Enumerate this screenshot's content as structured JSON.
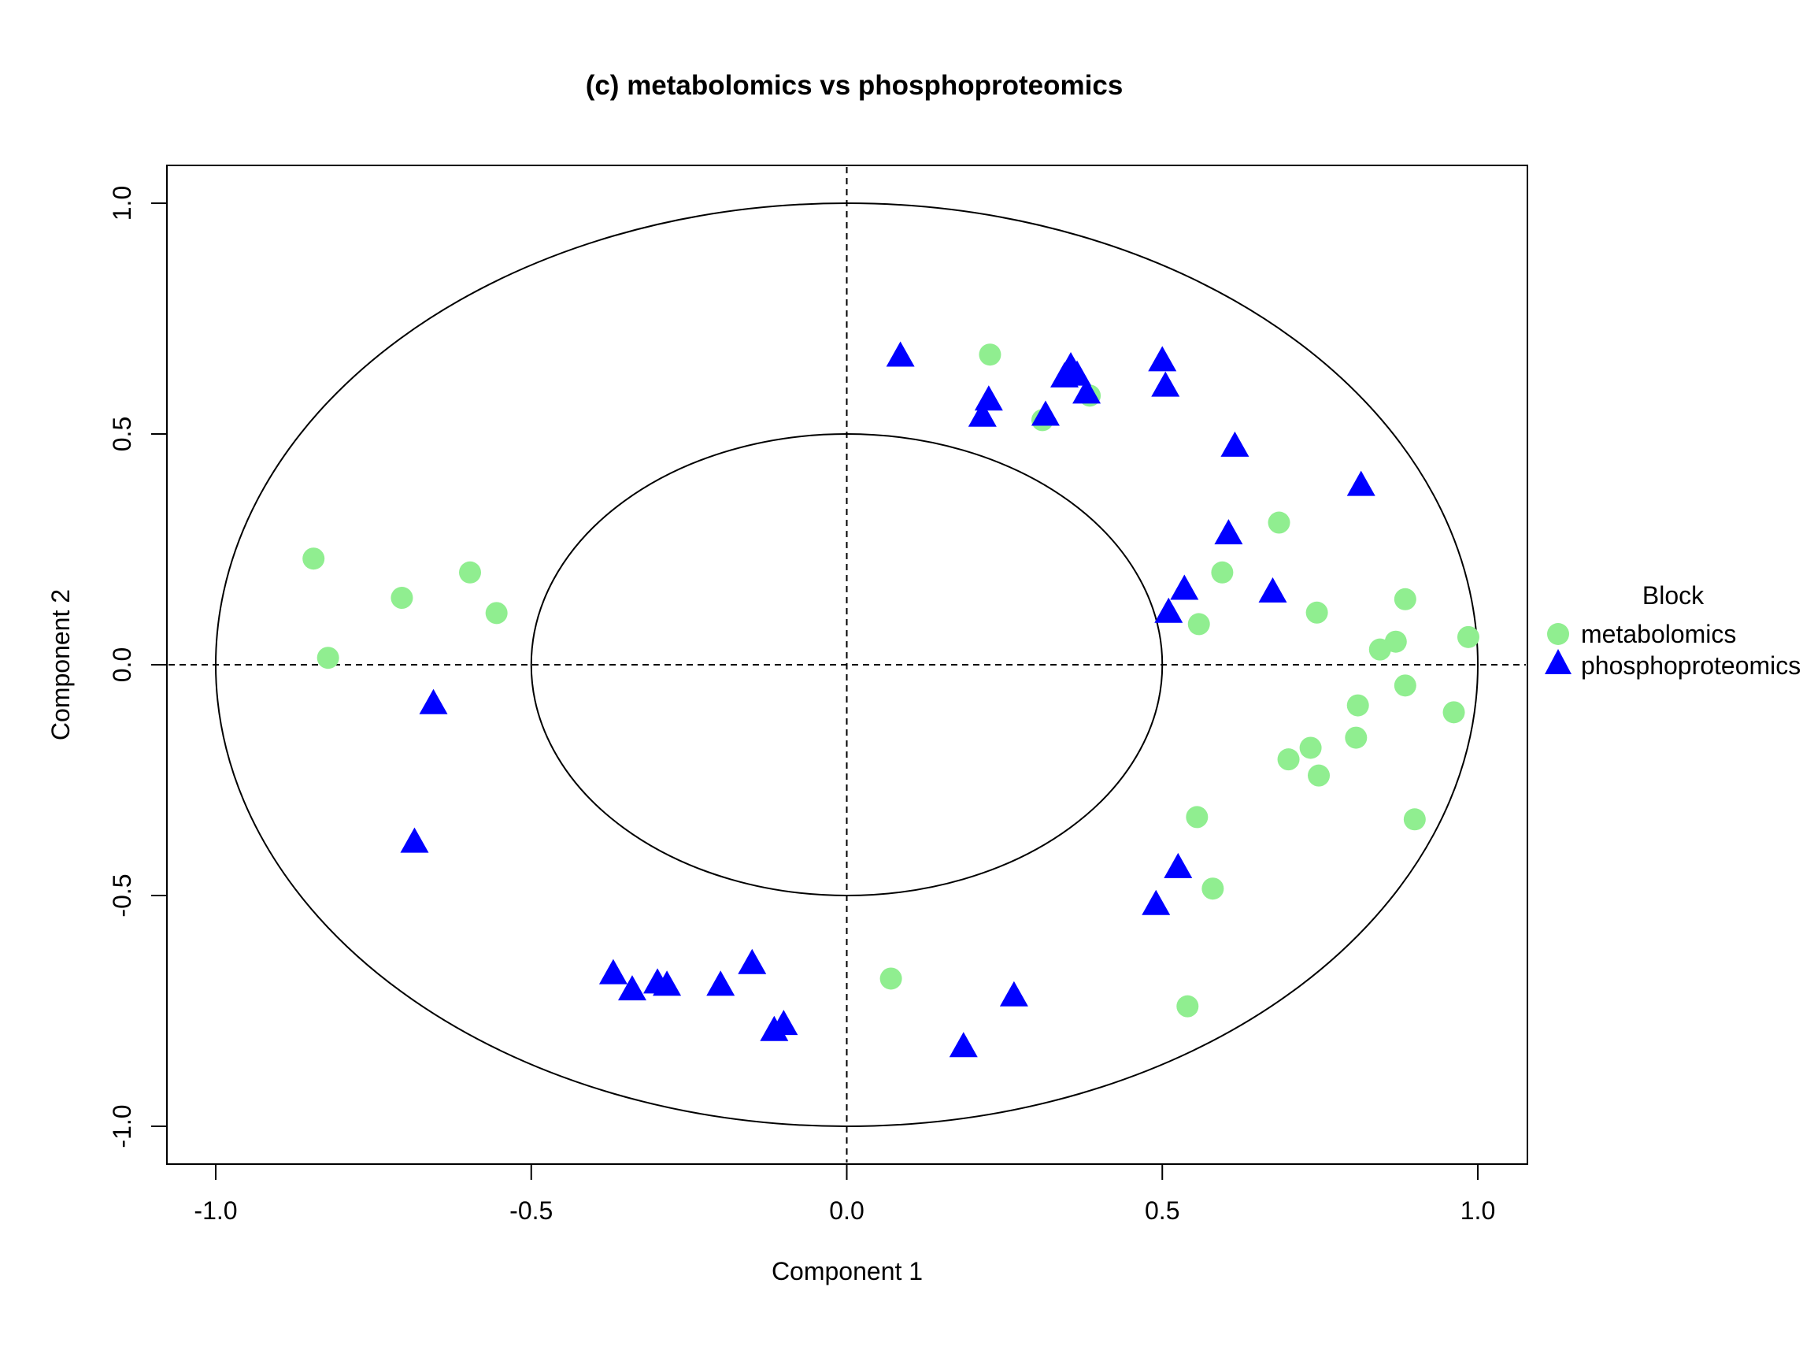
{
  "chart_data": {
    "type": "scatter",
    "title": "(c) metabolomics vs phosphoproteomics",
    "xlabel": "Component  1",
    "ylabel": "Component  2",
    "xlim": [
      -1.08,
      1.08
    ],
    "ylim": [
      -1.08,
      1.08
    ],
    "x_ticks": [
      "-1.0",
      "-0.5",
      "0.0",
      "0.5",
      "1.0"
    ],
    "y_ticks": [
      "-1.0",
      "-0.5",
      "0.0",
      "0.5",
      "1.0"
    ],
    "grid": false,
    "reference_lines": {
      "x": 0,
      "y": 0,
      "style": "dashed"
    },
    "circles": [
      1.0,
      0.5
    ],
    "legend": {
      "title": "Block",
      "position": "right"
    },
    "series": [
      {
        "name": "metabolomics",
        "marker": "circle",
        "color": "#90EE90",
        "points": [
          [
            -0.845,
            0.23
          ],
          [
            -0.822,
            0.015
          ],
          [
            -0.705,
            0.145
          ],
          [
            -0.597,
            0.2
          ],
          [
            -0.555,
            0.112
          ],
          [
            0.07,
            -0.68
          ],
          [
            0.227,
            0.672
          ],
          [
            0.31,
            0.53
          ],
          [
            0.385,
            0.583
          ],
          [
            0.54,
            -0.74
          ],
          [
            0.555,
            -0.33
          ],
          [
            0.558,
            0.088
          ],
          [
            0.58,
            -0.485
          ],
          [
            0.595,
            0.2
          ],
          [
            0.685,
            0.308
          ],
          [
            0.7,
            -0.205
          ],
          [
            0.735,
            -0.18
          ],
          [
            0.745,
            0.113
          ],
          [
            0.748,
            -0.24
          ],
          [
            0.807,
            -0.158
          ],
          [
            0.81,
            -0.088
          ],
          [
            0.845,
            0.033
          ],
          [
            0.87,
            0.05
          ],
          [
            0.885,
            0.142
          ],
          [
            0.885,
            -0.045
          ],
          [
            0.9,
            -0.335
          ],
          [
            0.962,
            -0.103
          ],
          [
            0.985,
            0.06
          ]
        ]
      },
      {
        "name": "phosphoproteomics",
        "marker": "triangle",
        "color": "#0000FF",
        "points": [
          [
            -0.655,
            -0.085
          ],
          [
            -0.685,
            -0.385
          ],
          [
            -0.37,
            -0.67
          ],
          [
            -0.34,
            -0.705
          ],
          [
            -0.3,
            -0.69
          ],
          [
            -0.285,
            -0.695
          ],
          [
            -0.2,
            -0.695
          ],
          [
            -0.15,
            -0.648
          ],
          [
            -0.115,
            -0.793
          ],
          [
            -0.1,
            -0.78
          ],
          [
            0.085,
            0.668
          ],
          [
            0.185,
            -0.828
          ],
          [
            0.215,
            0.538
          ],
          [
            0.225,
            0.573
          ],
          [
            0.265,
            -0.718
          ],
          [
            0.315,
            0.54
          ],
          [
            0.345,
            0.623
          ],
          [
            0.355,
            0.645
          ],
          [
            0.365,
            0.627
          ],
          [
            0.38,
            0.588
          ],
          [
            0.49,
            -0.52
          ],
          [
            0.5,
            0.658
          ],
          [
            0.505,
            0.603
          ],
          [
            0.51,
            0.113
          ],
          [
            0.525,
            -0.44
          ],
          [
            0.535,
            0.163
          ],
          [
            0.605,
            0.283
          ],
          [
            0.615,
            0.473
          ],
          [
            0.675,
            0.157
          ],
          [
            0.815,
            0.388
          ]
        ]
      }
    ]
  }
}
